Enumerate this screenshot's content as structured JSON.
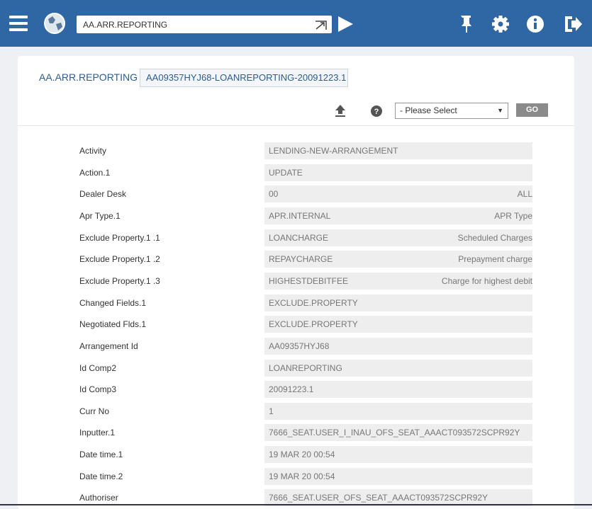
{
  "toolbar": {
    "command": "AA.ARR.REPORTING"
  },
  "header": {
    "application": "AA.ARR.REPORTING",
    "record_id": "AA09357HYJ68-LOANREPORTING-20091223.1"
  },
  "actions": {
    "select_placeholder": "- Please Select",
    "go": "GO"
  },
  "fields": [
    {
      "label": "Activity",
      "value": "LENDING-NEW-ARRANGEMENT"
    },
    {
      "label": "Action.1",
      "value": "UPDATE"
    },
    {
      "label": "Dealer Desk",
      "value": "00",
      "enrichment": "ALL"
    },
    {
      "label": "Apr Type.1",
      "value": "APR.INTERNAL",
      "enrichment": "APR Type"
    },
    {
      "label": "Exclude Property.1 .1",
      "value": "LOANCHARGE",
      "enrichment": "Scheduled Charges"
    },
    {
      "label": "Exclude Property.1 .2",
      "value": "REPAYCHARGE",
      "enrichment": "Prepayment charge"
    },
    {
      "label": "Exclude Property.1 .3",
      "value": "HIGHESTDEBITFEE",
      "enrichment": "Charge for highest debit"
    },
    {
      "label": "Changed Fields.1",
      "value": "EXCLUDE.PROPERTY"
    },
    {
      "label": "Negotiated Flds.1",
      "value": "EXCLUDE.PROPERTY"
    },
    {
      "label": "Arrangement Id",
      "value": "AA09357HYJ68"
    },
    {
      "label": "Id Comp2",
      "value": "LOANREPORTING"
    },
    {
      "label": "Id Comp3",
      "value": "20091223.1"
    },
    {
      "label": "Curr No",
      "value": "1"
    },
    {
      "label": "Inputter.1",
      "value": "7666_SEAT.USER_I_INAU_OFS_SEAT_AAACT093572SCPR92Y"
    },
    {
      "label": "Date time.1",
      "value": "19 MAR 20 00:54"
    },
    {
      "label": "Date time.2",
      "value": "19 MAR 20 00:54"
    },
    {
      "label": "Authoriser",
      "value": "7666_SEAT.USER_OFS_SEAT_AAACT093572SCPR92Y"
    }
  ]
}
